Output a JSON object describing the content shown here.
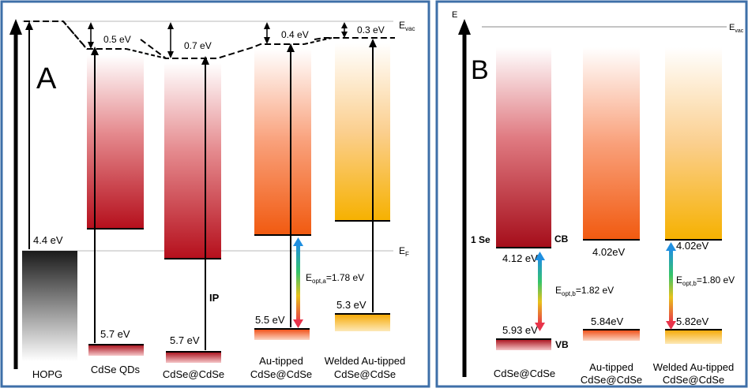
{
  "colors": {
    "panel_border": "#3e6fa8",
    "dark_red": "#b80f18",
    "deep_red": "#8e0f18",
    "orange": "#f26a12",
    "yellow": "#f7c200",
    "black": "#000000"
  },
  "panel_a": {
    "letter": "A",
    "evac": "E",
    "evac_sub": "vac",
    "ef": "E",
    "ef_sub": "F",
    "hopg_value": "4.4 eV",
    "offsets": [
      "0.5 eV",
      "0.7 eV",
      "0.4 eV",
      "0.3 eV"
    ],
    "vb_values": [
      "5.7 eV",
      "5.7 eV",
      "5.5 eV",
      "5.3 eV"
    ],
    "ip_label": "IP",
    "eopt_text": "E",
    "eopt_sub": "opt,a",
    "eopt_value": "=1.78 eV",
    "labels": {
      "hopg": "HOPG",
      "qd": "CdSe QDs",
      "cc": "CdSe@CdSe",
      "au1": "Au-tipped",
      "au2": "CdSe@CdSe",
      "w1": "Welded Au-tipped",
      "w2": "CdSe@CdSe"
    }
  },
  "panel_b": {
    "letter": "B",
    "axis_e": "E",
    "evac": "E",
    "evac_sub": "vac",
    "one_se": "1 Se",
    "cb": "CB",
    "vb": "VB",
    "cb_values": [
      "4.12 eV",
      "4.02eV",
      "4.02eV"
    ],
    "vb_values": [
      "5.93 eV",
      "5.84eV",
      "5.82eV"
    ],
    "eopt1_text": "E",
    "eopt1_sub": "opt,b",
    "eopt1_value": "=1.82 eV",
    "eopt2_text": "E",
    "eopt2_sub": "opt,b",
    "eopt2_value": "=1.80 eV",
    "labels": {
      "cc": "CdSe@CdSe",
      "au1": "Au-tipped",
      "au2": "CdSe@CdSe",
      "w1": "Welded Au-tipped",
      "w2": "CdSe@CdSe"
    }
  }
}
